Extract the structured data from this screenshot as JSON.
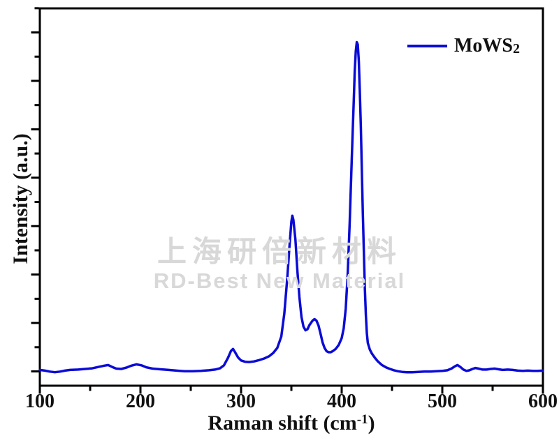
{
  "figure": {
    "background": "#ffffff",
    "axis_color": "#000000",
    "text_color": "#111111"
  },
  "legend": {
    "label_main": "MoWS",
    "label_sub": "2",
    "line_color": "#0b0bd6"
  },
  "watermark": {
    "line1": "上海研倍新材料",
    "line2": "RD-Best New Material",
    "color": "#d8d8d8"
  },
  "chart_data": {
    "type": "line",
    "title": "",
    "xlabel_prefix": "Raman shift (cm",
    "xlabel_sup": "-1",
    "xlabel_suffix": ")",
    "ylabel": "Intensity (a.u.)",
    "xlim": [
      100,
      600
    ],
    "ylim": [
      0,
      1.15
    ],
    "xticks_major": [
      100,
      200,
      300,
      400,
      500,
      600
    ],
    "xticks_minor": [
      150,
      250,
      350,
      450,
      550
    ],
    "yticks_labeled": false,
    "grid": false,
    "legend_position": "top-right",
    "line_color": "#0b0bd6",
    "peaks_annotation": [
      {
        "raman_shift": 292,
        "intensity": 0.11
      },
      {
        "raman_shift": 351,
        "intensity": 0.52
      },
      {
        "raman_shift": 373,
        "intensity": 0.2
      },
      {
        "raman_shift": 415,
        "intensity": 1.05
      }
    ],
    "series": [
      {
        "name": "MoWS2",
        "color": "#0b0bd6",
        "x": [
          100,
          105,
          110,
          115,
          120,
          125,
          130,
          138,
          145,
          152,
          158,
          164,
          168,
          172,
          176,
          181,
          186,
          191,
          196,
          201,
          206,
          212,
          220,
          228,
          236,
          244,
          252,
          260,
          268,
          274,
          279,
          283,
          287,
          290,
          292,
          294,
          297,
          300,
          304,
          308,
          313,
          318,
          323,
          328,
          332,
          336,
          340,
          343,
          346,
          348,
          350,
          351,
          352,
          354,
          356,
          358,
          360,
          362,
          364,
          366,
          368,
          371,
          373,
          375,
          377,
          379,
          381,
          383,
          385,
          387,
          389,
          391,
          394,
          397,
          400,
          402,
          404,
          406,
          408,
          410,
          412,
          413,
          414,
          415,
          416,
          417,
          418,
          419,
          420,
          421,
          422,
          423,
          424,
          425,
          426,
          428,
          430,
          433,
          436,
          440,
          444,
          448,
          452,
          456,
          460,
          465,
          470,
          476,
          482,
          488,
          494,
          500,
          505,
          509,
          513,
          515,
          518,
          521,
          524,
          527,
          530,
          533,
          536,
          540,
          544,
          548,
          552,
          556,
          560,
          565,
          570,
          575,
          580,
          585,
          590,
          595,
          600
        ],
        "y": [
          0.048,
          0.046,
          0.043,
          0.041,
          0.043,
          0.046,
          0.048,
          0.049,
          0.051,
          0.053,
          0.057,
          0.061,
          0.063,
          0.057,
          0.052,
          0.051,
          0.055,
          0.061,
          0.065,
          0.062,
          0.056,
          0.052,
          0.05,
          0.048,
          0.046,
          0.044,
          0.044,
          0.045,
          0.047,
          0.049,
          0.053,
          0.062,
          0.085,
          0.106,
          0.112,
          0.102,
          0.086,
          0.077,
          0.073,
          0.072,
          0.074,
          0.078,
          0.083,
          0.09,
          0.1,
          0.115,
          0.15,
          0.22,
          0.33,
          0.42,
          0.5,
          0.518,
          0.505,
          0.445,
          0.35,
          0.27,
          0.21,
          0.18,
          0.169,
          0.172,
          0.185,
          0.198,
          0.203,
          0.198,
          0.183,
          0.158,
          0.132,
          0.115,
          0.105,
          0.102,
          0.102,
          0.105,
          0.112,
          0.124,
          0.145,
          0.175,
          0.235,
          0.34,
          0.5,
          0.69,
          0.87,
          0.96,
          1.02,
          1.047,
          1.04,
          0.99,
          0.9,
          0.79,
          0.66,
          0.53,
          0.41,
          0.3,
          0.215,
          0.16,
          0.13,
          0.11,
          0.098,
          0.085,
          0.074,
          0.063,
          0.056,
          0.051,
          0.047,
          0.044,
          0.042,
          0.041,
          0.041,
          0.042,
          0.043,
          0.043,
          0.044,
          0.045,
          0.047,
          0.052,
          0.06,
          0.063,
          0.057,
          0.049,
          0.045,
          0.047,
          0.051,
          0.054,
          0.052,
          0.049,
          0.049,
          0.051,
          0.052,
          0.05,
          0.048,
          0.049,
          0.048,
          0.046,
          0.045,
          0.046,
          0.045,
          0.045,
          0.046
        ]
      }
    ]
  }
}
